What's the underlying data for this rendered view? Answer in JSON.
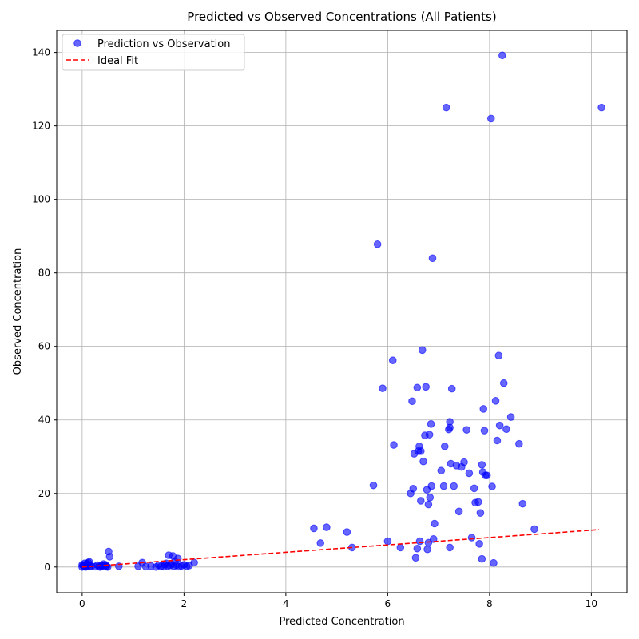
{
  "chart_data": {
    "type": "scatter",
    "title": "Predicted vs Observed Concentrations (All Patients)",
    "xlabel": "Predicted Concentration",
    "ylabel": "Observed Concentration",
    "xlim": [
      -0.5,
      10.7
    ],
    "ylim": [
      -7,
      146
    ],
    "xticks": [
      0,
      2,
      4,
      6,
      8,
      10
    ],
    "yticks": [
      0,
      20,
      40,
      60,
      80,
      100,
      120,
      140
    ],
    "grid": true,
    "legend_position": "top-left",
    "series": [
      {
        "name": "Prediction vs Observation",
        "kind": "scatter",
        "color": "#0000ff",
        "points": [
          [
            0.0,
            0.0
          ],
          [
            0.02,
            0.5
          ],
          [
            0.05,
            1.0
          ],
          [
            0.08,
            0.2
          ],
          [
            0.1,
            0.8
          ],
          [
            0.12,
            1.2
          ],
          [
            0.15,
            0.3
          ],
          [
            0.05,
            0.1
          ],
          [
            0.0,
            0.6
          ],
          [
            0.03,
            0.3
          ],
          [
            0.07,
            0.0
          ],
          [
            0.11,
            0.4
          ],
          [
            0.14,
            1.4
          ],
          [
            0.18,
            0.2
          ],
          [
            0.09,
            0.9
          ],
          [
            0.25,
            0.1
          ],
          [
            0.3,
            0.5
          ],
          [
            0.35,
            0.0
          ],
          [
            0.38,
            0.3
          ],
          [
            0.42,
            0.8
          ],
          [
            0.45,
            0.1
          ],
          [
            0.48,
            0.2
          ],
          [
            0.5,
            0.0
          ],
          [
            0.52,
            4.2
          ],
          [
            0.54,
            2.8
          ],
          [
            0.4,
            0.4
          ],
          [
            0.33,
            0.2
          ],
          [
            0.46,
            0.6
          ],
          [
            0.72,
            0.2
          ],
          [
            1.1,
            0.2
          ],
          [
            1.18,
            1.2
          ],
          [
            1.25,
            0.1
          ],
          [
            1.35,
            0.3
          ],
          [
            1.45,
            0.0
          ],
          [
            1.5,
            0.5
          ],
          [
            1.55,
            0.2
          ],
          [
            1.6,
            0.1
          ],
          [
            1.65,
            1.0
          ],
          [
            1.7,
            3.2
          ],
          [
            1.72,
            0.4
          ],
          [
            1.75,
            0.8
          ],
          [
            1.78,
            3.0
          ],
          [
            1.8,
            0.2
          ],
          [
            1.85,
            0.5
          ],
          [
            1.88,
            2.3
          ],
          [
            1.9,
            0.1
          ],
          [
            1.95,
            0.3
          ],
          [
            2.0,
            0.6
          ],
          [
            2.05,
            0.2
          ],
          [
            2.1,
            0.4
          ],
          [
            2.2,
            1.2
          ],
          [
            1.62,
            0.7
          ],
          [
            1.68,
            0.3
          ],
          [
            1.82,
            1.5
          ],
          [
            4.55,
            10.5
          ],
          [
            4.68,
            6.5
          ],
          [
            4.8,
            10.8
          ],
          [
            5.2,
            9.5
          ],
          [
            5.3,
            5.3
          ],
          [
            5.72,
            22.2
          ],
          [
            5.8,
            87.8
          ],
          [
            5.9,
            48.6
          ],
          [
            6.0,
            7.0
          ],
          [
            6.1,
            56.2
          ],
          [
            6.12,
            33.2
          ],
          [
            6.25,
            5.3
          ],
          [
            6.45,
            20.0
          ],
          [
            6.48,
            45.1
          ],
          [
            6.5,
            21.3
          ],
          [
            6.52,
            30.8
          ],
          [
            6.55,
            2.5
          ],
          [
            6.58,
            48.8
          ],
          [
            6.6,
            31.5
          ],
          [
            6.62,
            32.8
          ],
          [
            6.65,
            18.0
          ],
          [
            6.68,
            59.0
          ],
          [
            6.7,
            28.7
          ],
          [
            6.75,
            49.0
          ],
          [
            6.77,
            21.0
          ],
          [
            6.8,
            17.0
          ],
          [
            6.82,
            36.0
          ],
          [
            6.85,
            38.9
          ],
          [
            6.86,
            22.0
          ],
          [
            6.88,
            84.0
          ],
          [
            6.9,
            7.6
          ],
          [
            6.92,
            11.8
          ],
          [
            7.05,
            26.2
          ],
          [
            7.1,
            22.0
          ],
          [
            7.12,
            32.8
          ],
          [
            7.15,
            125.0
          ],
          [
            7.2,
            37.4
          ],
          [
            7.22,
            39.5
          ],
          [
            7.24,
            28.1
          ],
          [
            7.26,
            48.5
          ],
          [
            7.3,
            22.0
          ],
          [
            7.35,
            27.6
          ],
          [
            7.4,
            15.1
          ],
          [
            7.45,
            27.2
          ],
          [
            7.5,
            28.5
          ],
          [
            7.55,
            37.3
          ],
          [
            7.6,
            25.5
          ],
          [
            7.65,
            8.0
          ],
          [
            7.7,
            21.4
          ],
          [
            7.72,
            17.5
          ],
          [
            7.78,
            17.7
          ],
          [
            7.8,
            6.3
          ],
          [
            7.82,
            14.7
          ],
          [
            7.85,
            27.8
          ],
          [
            7.87,
            25.8
          ],
          [
            7.88,
            43.0
          ],
          [
            7.9,
            37.1
          ],
          [
            7.92,
            24.9
          ],
          [
            7.95,
            24.9
          ],
          [
            8.03,
            122.0
          ],
          [
            8.05,
            21.9
          ],
          [
            8.08,
            1.1
          ],
          [
            8.12,
            45.2
          ],
          [
            8.15,
            34.4
          ],
          [
            8.18,
            57.5
          ],
          [
            8.2,
            38.5
          ],
          [
            8.25,
            139.2
          ],
          [
            8.28,
            50.0
          ],
          [
            8.33,
            37.5
          ],
          [
            8.42,
            40.8
          ],
          [
            8.58,
            33.5
          ],
          [
            8.65,
            17.2
          ],
          [
            8.88,
            10.3
          ],
          [
            10.2,
            125.0
          ],
          [
            6.58,
            5.0
          ],
          [
            6.63,
            7.0
          ],
          [
            6.78,
            4.8
          ],
          [
            6.8,
            6.6
          ],
          [
            7.22,
            5.3
          ],
          [
            7.85,
            2.2
          ],
          [
            6.83,
            18.9
          ],
          [
            6.65,
            31.5
          ],
          [
            7.22,
            37.9
          ],
          [
            6.73,
            35.8
          ]
        ]
      },
      {
        "name": "Ideal Fit",
        "kind": "line",
        "color": "#ff0000",
        "style": "dashed",
        "x": [
          0,
          10.15
        ],
        "y": [
          0,
          10.15
        ]
      }
    ]
  }
}
